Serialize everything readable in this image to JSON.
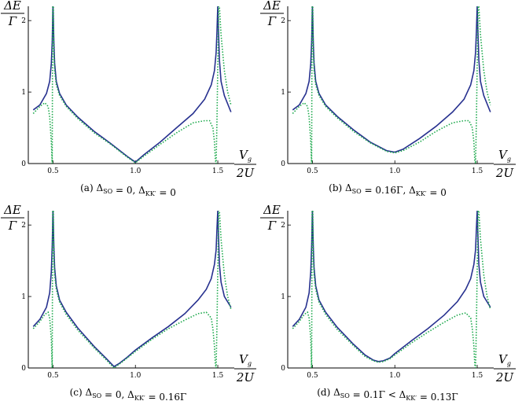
{
  "colors": {
    "solid": "#27318f",
    "dotted": "#1aa84a",
    "axis": "#000000"
  },
  "chart_data": [
    {
      "type": "line",
      "caption": "(a)  Δ_SO = 0, Δ_KK′ = 0",
      "ylabel_num": "ΔE",
      "ylabel_den": "Γ",
      "xlabel_num": "V_g",
      "xlabel_den": "2U",
      "xlim": [
        0.35,
        1.6
      ],
      "ylim": [
        0,
        2.2
      ],
      "xticks": [
        {
          "v": 0.5,
          "t": "0.5"
        },
        {
          "v": 1.0,
          "t": "1.0"
        },
        {
          "v": 1.5,
          "t": "1.5"
        }
      ],
      "yticks": [
        {
          "v": 0,
          "t": "0"
        },
        {
          "v": 1,
          "t": "1"
        },
        {
          "v": 2,
          "t": "2"
        }
      ],
      "series": [
        {
          "style": "solid",
          "x": [
            0.38,
            0.42,
            0.46,
            0.48,
            0.49,
            0.495,
            0.5,
            0.505,
            0.51,
            0.52,
            0.54,
            0.58,
            0.65,
            0.75,
            0.85,
            0.95,
            1.0,
            1.05,
            1.15,
            1.25,
            1.35,
            1.42,
            1.46,
            1.48,
            1.49,
            1.495,
            1.5,
            1.505,
            1.51,
            1.52,
            1.54,
            1.58
          ],
          "y": [
            0.75,
            0.82,
            0.98,
            1.15,
            1.4,
            1.7,
            2.2,
            1.7,
            1.4,
            1.15,
            0.98,
            0.82,
            0.65,
            0.45,
            0.28,
            0.1,
            0.02,
            0.12,
            0.3,
            0.5,
            0.7,
            0.9,
            1.1,
            1.3,
            1.55,
            1.85,
            2.2,
            1.8,
            1.45,
            1.15,
            0.95,
            0.72
          ]
        },
        {
          "style": "dotted",
          "x": [
            0.38,
            0.42,
            0.45,
            0.47,
            0.48,
            0.49,
            0.495,
            0.498,
            0.502,
            0.505,
            0.51,
            0.52,
            0.54,
            0.58,
            0.65,
            0.75,
            0.85,
            0.95,
            1.0,
            1.05,
            1.15,
            1.25,
            1.35,
            1.42,
            1.45,
            1.47,
            1.48,
            1.485,
            1.49,
            1.495,
            1.505,
            1.51,
            1.52,
            1.54,
            1.56,
            1.58
          ],
          "y": [
            0.7,
            0.8,
            0.85,
            0.8,
            0.65,
            0.3,
            0.0,
            2.2,
            2.2,
            1.6,
            1.3,
            1.1,
            0.95,
            0.8,
            0.63,
            0.43,
            0.27,
            0.09,
            0.01,
            0.1,
            0.27,
            0.43,
            0.57,
            0.6,
            0.6,
            0.5,
            0.3,
            0.05,
            0.0,
            0.6,
            2.2,
            2.2,
            1.8,
            1.3,
            1.0,
            0.82
          ]
        }
      ]
    },
    {
      "type": "line",
      "caption": "(b)  Δ_SO = 0.16Γ, Δ_KK′ = 0",
      "ylabel_num": "ΔE",
      "ylabel_den": "Γ",
      "xlabel_num": "V_g",
      "xlabel_den": "2U",
      "xlim": [
        0.35,
        1.6
      ],
      "ylim": [
        0,
        2.2
      ],
      "xticks": [
        {
          "v": 0.5,
          "t": "0.5"
        },
        {
          "v": 1.0,
          "t": "1.0"
        },
        {
          "v": 1.5,
          "t": "1.5"
        }
      ],
      "yticks": [
        {
          "v": 0,
          "t": "0"
        },
        {
          "v": 1,
          "t": "1"
        },
        {
          "v": 2,
          "t": "2"
        }
      ],
      "series": [
        {
          "style": "solid",
          "x": [
            0.38,
            0.42,
            0.46,
            0.48,
            0.49,
            0.495,
            0.5,
            0.505,
            0.51,
            0.52,
            0.54,
            0.58,
            0.65,
            0.75,
            0.85,
            0.95,
            1.0,
            1.05,
            1.15,
            1.25,
            1.35,
            1.42,
            1.46,
            1.48,
            1.49,
            1.495,
            1.5,
            1.505,
            1.51,
            1.52,
            1.54,
            1.58
          ],
          "y": [
            0.75,
            0.82,
            0.98,
            1.15,
            1.4,
            1.7,
            2.2,
            1.7,
            1.4,
            1.15,
            0.98,
            0.82,
            0.66,
            0.47,
            0.3,
            0.18,
            0.16,
            0.2,
            0.35,
            0.52,
            0.72,
            0.9,
            1.1,
            1.3,
            1.55,
            1.85,
            2.2,
            1.8,
            1.45,
            1.15,
            0.95,
            0.72
          ]
        },
        {
          "style": "dotted",
          "x": [
            0.38,
            0.42,
            0.45,
            0.47,
            0.48,
            0.49,
            0.495,
            0.498,
            0.502,
            0.505,
            0.51,
            0.52,
            0.54,
            0.58,
            0.65,
            0.75,
            0.85,
            0.95,
            1.0,
            1.05,
            1.15,
            1.25,
            1.35,
            1.42,
            1.45,
            1.47,
            1.48,
            1.485,
            1.49,
            1.495,
            1.505,
            1.51,
            1.52,
            1.54,
            1.56,
            1.58
          ],
          "y": [
            0.7,
            0.8,
            0.85,
            0.8,
            0.65,
            0.3,
            0.0,
            2.2,
            2.2,
            1.6,
            1.3,
            1.1,
            0.95,
            0.8,
            0.64,
            0.45,
            0.29,
            0.17,
            0.15,
            0.18,
            0.3,
            0.45,
            0.57,
            0.6,
            0.6,
            0.5,
            0.3,
            0.05,
            0.0,
            0.6,
            2.2,
            2.2,
            1.8,
            1.3,
            1.0,
            0.82
          ]
        }
      ]
    },
    {
      "type": "line",
      "caption": "(c)  Δ_SO = 0, Δ_KK′ = 0.16Γ",
      "ylabel_num": "ΔE",
      "ylabel_den": "Γ",
      "xlabel_num": "V_g",
      "xlabel_den": "2U",
      "xlim": [
        0.35,
        1.6
      ],
      "ylim": [
        0,
        2.2
      ],
      "xticks": [
        {
          "v": 0.5,
          "t": "0.5"
        },
        {
          "v": 1.0,
          "t": "1.0"
        },
        {
          "v": 1.5,
          "t": "1.5"
        }
      ],
      "yticks": [
        {
          "v": 0,
          "t": "0"
        },
        {
          "v": 1,
          "t": "1"
        },
        {
          "v": 2,
          "t": "2"
        }
      ],
      "series": [
        {
          "style": "solid",
          "x": [
            0.38,
            0.42,
            0.46,
            0.48,
            0.49,
            0.495,
            0.5,
            0.505,
            0.51,
            0.52,
            0.54,
            0.58,
            0.65,
            0.75,
            0.82,
            0.87,
            0.9,
            0.95,
            1.0,
            1.1,
            1.2,
            1.3,
            1.38,
            1.43,
            1.46,
            1.48,
            1.49,
            1.495,
            1.5,
            1.505,
            1.51,
            1.52,
            1.54,
            1.58
          ],
          "y": [
            0.58,
            0.68,
            0.85,
            1.05,
            1.35,
            1.7,
            2.2,
            1.7,
            1.4,
            1.15,
            0.95,
            0.78,
            0.56,
            0.3,
            0.14,
            0.02,
            0.06,
            0.15,
            0.25,
            0.42,
            0.58,
            0.76,
            0.95,
            1.1,
            1.25,
            1.45,
            1.65,
            1.95,
            2.2,
            1.8,
            1.45,
            1.2,
            1.0,
            0.85
          ]
        },
        {
          "style": "dotted",
          "x": [
            0.38,
            0.42,
            0.45,
            0.47,
            0.48,
            0.49,
            0.495,
            0.498,
            0.502,
            0.505,
            0.51,
            0.52,
            0.54,
            0.58,
            0.65,
            0.75,
            0.82,
            0.87,
            0.9,
            0.95,
            1.0,
            1.1,
            1.2,
            1.3,
            1.38,
            1.43,
            1.46,
            1.47,
            1.48,
            1.485,
            1.49,
            1.495,
            1.505,
            1.51,
            1.52,
            1.54,
            1.56,
            1.58
          ],
          "y": [
            0.55,
            0.65,
            0.75,
            0.78,
            0.7,
            0.4,
            0.0,
            2.2,
            2.2,
            1.6,
            1.3,
            1.1,
            0.92,
            0.75,
            0.53,
            0.28,
            0.12,
            0.0,
            0.05,
            0.14,
            0.23,
            0.4,
            0.55,
            0.67,
            0.76,
            0.78,
            0.7,
            0.55,
            0.3,
            0.05,
            0.0,
            0.6,
            2.2,
            2.2,
            1.8,
            1.3,
            1.0,
            0.82
          ]
        }
      ]
    },
    {
      "type": "line",
      "caption": "(d)  Δ_SO = 0.1Γ < Δ_KK′ = 0.13Γ",
      "ylabel_num": "ΔE",
      "ylabel_den": "Γ",
      "xlabel_num": "V_g",
      "xlabel_den": "2U",
      "xlim": [
        0.35,
        1.6
      ],
      "ylim": [
        0,
        2.2
      ],
      "xticks": [
        {
          "v": 0.5,
          "t": "0.5"
        },
        {
          "v": 1.0,
          "t": "1.0"
        },
        {
          "v": 1.5,
          "t": "1.5"
        }
      ],
      "yticks": [
        {
          "v": 0,
          "t": "0"
        },
        {
          "v": 1,
          "t": "1"
        },
        {
          "v": 2,
          "t": "2"
        }
      ],
      "series": [
        {
          "style": "solid",
          "x": [
            0.38,
            0.42,
            0.46,
            0.48,
            0.49,
            0.495,
            0.5,
            0.505,
            0.51,
            0.52,
            0.54,
            0.58,
            0.65,
            0.75,
            0.82,
            0.87,
            0.9,
            0.93,
            0.97,
            1.0,
            1.1,
            1.2,
            1.3,
            1.38,
            1.43,
            1.46,
            1.48,
            1.49,
            1.495,
            1.5,
            1.505,
            1.51,
            1.52,
            1.54,
            1.58
          ],
          "y": [
            0.58,
            0.68,
            0.85,
            1.05,
            1.35,
            1.7,
            2.2,
            1.7,
            1.4,
            1.15,
            0.95,
            0.78,
            0.57,
            0.33,
            0.18,
            0.11,
            0.09,
            0.1,
            0.14,
            0.2,
            0.38,
            0.55,
            0.74,
            0.93,
            1.1,
            1.25,
            1.45,
            1.65,
            1.95,
            2.2,
            1.8,
            1.45,
            1.2,
            1.0,
            0.85
          ]
        },
        {
          "style": "dotted",
          "x": [
            0.38,
            0.42,
            0.45,
            0.47,
            0.48,
            0.49,
            0.495,
            0.498,
            0.502,
            0.505,
            0.51,
            0.52,
            0.54,
            0.58,
            0.65,
            0.75,
            0.82,
            0.87,
            0.9,
            0.93,
            0.97,
            1.0,
            1.1,
            1.2,
            1.3,
            1.38,
            1.43,
            1.46,
            1.47,
            1.48,
            1.485,
            1.49,
            1.495,
            1.505,
            1.51,
            1.52,
            1.54,
            1.56,
            1.58
          ],
          "y": [
            0.55,
            0.65,
            0.75,
            0.78,
            0.7,
            0.4,
            0.0,
            2.2,
            2.2,
            1.6,
            1.3,
            1.1,
            0.92,
            0.75,
            0.54,
            0.31,
            0.16,
            0.1,
            0.08,
            0.09,
            0.13,
            0.18,
            0.35,
            0.5,
            0.64,
            0.74,
            0.77,
            0.7,
            0.55,
            0.3,
            0.05,
            0.0,
            0.6,
            2.2,
            2.2,
            1.8,
            1.3,
            1.0,
            0.82
          ]
        }
      ]
    }
  ]
}
